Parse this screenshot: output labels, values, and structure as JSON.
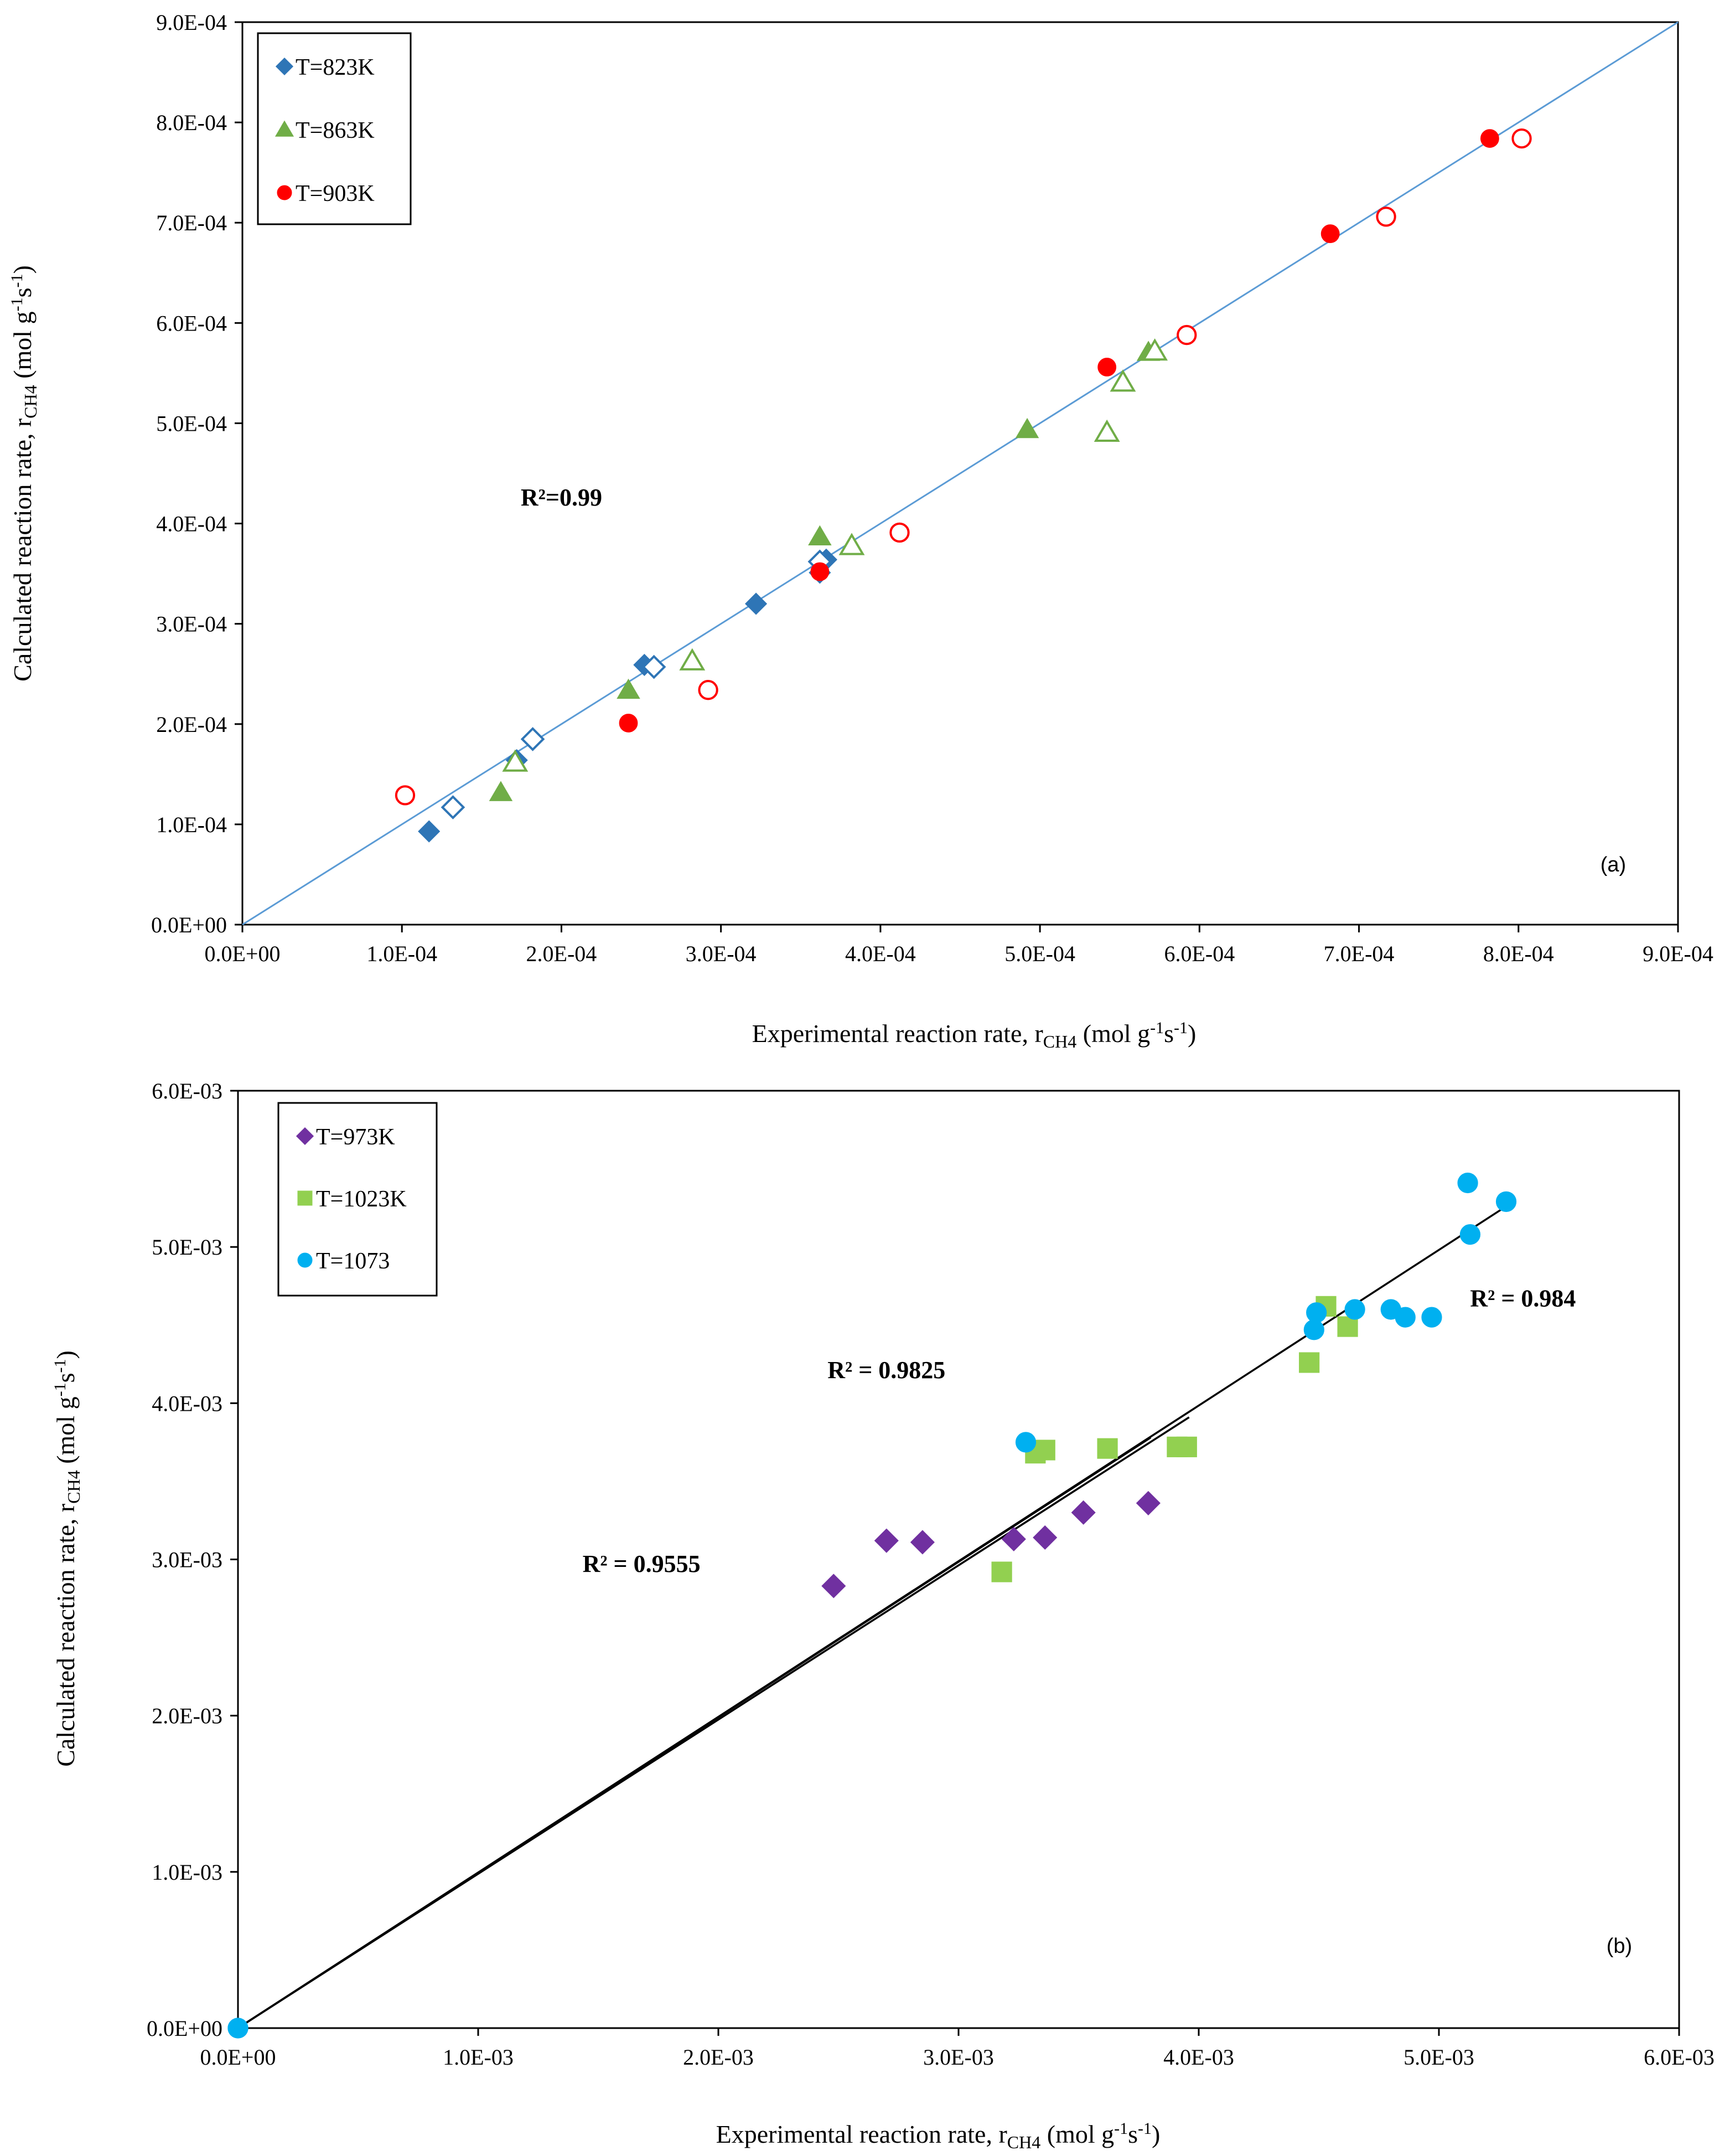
{
  "chart_data": [
    {
      "type": "scatter",
      "panel_label": "(a)",
      "xlabel": {
        "main": "Experimental reaction rate, r",
        "sub": "CH4",
        "unit_open": " (mol g",
        "sup1": "-1",
        "mid": "s",
        "sup2": "-1",
        "unit_close": ")"
      },
      "ylabel": {
        "main": "Calculated reaction rate, r",
        "sub": "CH4",
        "unit_open": " (mol g",
        "sup1": "-1",
        "mid": "s",
        "sup2": "-1",
        "unit_close": ")"
      },
      "xlim": [
        0,
        0.0009
      ],
      "ylim": [
        0,
        0.0009
      ],
      "xticks": [
        "0.0E+00",
        "1.0E-04",
        "2.0E-04",
        "3.0E-04",
        "4.0E-04",
        "5.0E-04",
        "6.0E-04",
        "7.0E-04",
        "8.0E-04",
        "9.0E-04"
      ],
      "yticks": [
        "0.0E+00",
        "1.0E-04",
        "2.0E-04",
        "3.0E-04",
        "4.0E-04",
        "5.0E-04",
        "6.0E-04",
        "7.0E-04",
        "8.0E-04",
        "9.0E-04"
      ],
      "grid": false,
      "legend_position": "top-left",
      "annotations": [
        {
          "text": "R²=0.99",
          "x": 0.0002,
          "y": 0.000418,
          "color": "#000000"
        }
      ],
      "fit_lines": [
        {
          "x": [
            0,
            0.0009
          ],
          "y": [
            0,
            0.0009
          ],
          "color": "#5b9bd5"
        }
      ],
      "series": [
        {
          "name": "T=823K",
          "marker": "diamond",
          "color": "#2e75b6",
          "filled": true,
          "x": [
            0.000117,
            0.000172,
            0.000252,
            0.000322,
            0.000362,
            0.000366
          ],
          "y": [
            9.3e-05,
            0.000164,
            0.000259,
            0.00032,
            0.000351,
            0.000364
          ]
        },
        {
          "name": "",
          "marker": "diamond",
          "color": "#2e75b6",
          "filled": false,
          "x": [
            0.000132,
            0.000182,
            0.000258,
            0.000362
          ],
          "y": [
            0.000117,
            0.000185,
            0.000257,
            0.000362
          ]
        },
        {
          "name": "T=863K",
          "marker": "triangle",
          "color": "#70ad47",
          "filled": true,
          "x": [
            0.000162,
            0.000242,
            0.000362,
            0.000492,
            0.000568
          ],
          "y": [
            0.000132,
            0.000234,
            0.000387,
            0.000494,
            0.000571
          ]
        },
        {
          "name": "",
          "marker": "triangle",
          "color": "#70ad47",
          "filled": false,
          "x": [
            0.000171,
            0.000282,
            0.000382,
            0.000542,
            0.000552,
            0.000572
          ],
          "y": [
            0.000162,
            0.000263,
            0.000378,
            0.000491,
            0.000541,
            0.000572
          ]
        },
        {
          "name": "T=903K",
          "marker": "circle",
          "color": "#ff0000",
          "filled": true,
          "x": [
            0.000242,
            0.000362,
            0.000542,
            0.000682,
            0.000782
          ],
          "y": [
            0.000201,
            0.000352,
            0.000556,
            0.000689,
            0.000784
          ]
        },
        {
          "name": "",
          "marker": "circle",
          "color": "#ff0000",
          "filled": false,
          "x": [
            0.000102,
            0.000292,
            0.000412,
            0.000592,
            0.000717,
            0.000802
          ],
          "y": [
            0.000129,
            0.000234,
            0.000391,
            0.000588,
            0.000706,
            0.000784
          ]
        }
      ]
    },
    {
      "type": "scatter",
      "panel_label": "(b)",
      "xlabel": {
        "main": "Experimental reaction rate, r",
        "sub": "CH4",
        "unit_open": " (mol g",
        "sup1": "-1",
        "mid": "s",
        "sup2": "-1",
        "unit_close": ")"
      },
      "ylabel": {
        "main": "Calculated reaction rate, r",
        "sub": "CH4",
        "unit_open": " (mol g",
        "sup1": "-1",
        "mid": "s",
        "sup2": "-1",
        "unit_close": ")"
      },
      "xlim": [
        0,
        0.006
      ],
      "ylim": [
        0,
        0.006
      ],
      "xticks": [
        "0.0E+00",
        "1.0E-03",
        "2.0E-03",
        "3.0E-03",
        "4.0E-03",
        "5.0E-03",
        "6.0E-03"
      ],
      "yticks": [
        "0.0E+00",
        "1.0E-03",
        "2.0E-03",
        "3.0E-03",
        "4.0E-03",
        "5.0E-03",
        "6.0E-03"
      ],
      "grid": false,
      "legend_position": "top-left",
      "annotations": [
        {
          "text": "R² = 0.9825",
          "x": 0.0027,
          "y": 0.00416,
          "color": "#00b050"
        },
        {
          "text": "R² = 0.9555",
          "x": 0.00168,
          "y": 0.00292,
          "color": "#7030a0"
        },
        {
          "text": "R² = 0.984",
          "x": 0.00535,
          "y": 0.00462,
          "color": "#00b0f0"
        }
      ],
      "fit_lines": [
        {
          "x": [
            0,
            0.0038
          ],
          "y": [
            0,
            0.00378
          ],
          "color": "#000000"
        },
        {
          "x": [
            0,
            0.00396
          ],
          "y": [
            0,
            0.00391
          ],
          "color": "#000000"
        },
        {
          "x": [
            0,
            0.0053
          ],
          "y": [
            0,
            0.00528
          ],
          "color": "#000000"
        }
      ],
      "series": [
        {
          "name": "T=973K",
          "marker": "diamond",
          "color": "#7030a0",
          "filled": true,
          "x": [
            0.00248,
            0.0027,
            0.00285,
            0.00323,
            0.00336,
            0.00352,
            0.00379
          ],
          "y": [
            0.00283,
            0.00312,
            0.00311,
            0.00313,
            0.00314,
            0.0033,
            0.00336
          ]
        },
        {
          "name": "T=1023K",
          "marker": "square",
          "color": "#92d050",
          "filled": true,
          "x": [
            0.00318,
            0.00332,
            0.00336,
            0.00362,
            0.00391,
            0.00395,
            0.00446,
            0.00453,
            0.00462
          ],
          "y": [
            0.00292,
            0.00368,
            0.0037,
            0.00371,
            0.00372,
            0.00372,
            0.00426,
            0.00462,
            0.00449
          ]
        },
        {
          "name": "T=1073",
          "marker": "circle",
          "color": "#00b0f0",
          "filled": true,
          "x": [
            0.00328,
            0.00448,
            0.00449,
            0.00465,
            0.0048,
            0.00486,
            0.00497,
            0.00512,
            0.00513,
            0.00528
          ],
          "y": [
            0.00375,
            0.00447,
            0.00458,
            0.0046,
            0.0046,
            0.00455,
            0.00455,
            0.00541,
            0.00508,
            0.00529
          ]
        },
        {
          "name": "",
          "marker": "circle",
          "color": "#00b0f0",
          "filled": true,
          "x": [
            0.0,
            0.0
          ],
          "y": [
            0.0,
            0.0
          ]
        }
      ]
    }
  ]
}
